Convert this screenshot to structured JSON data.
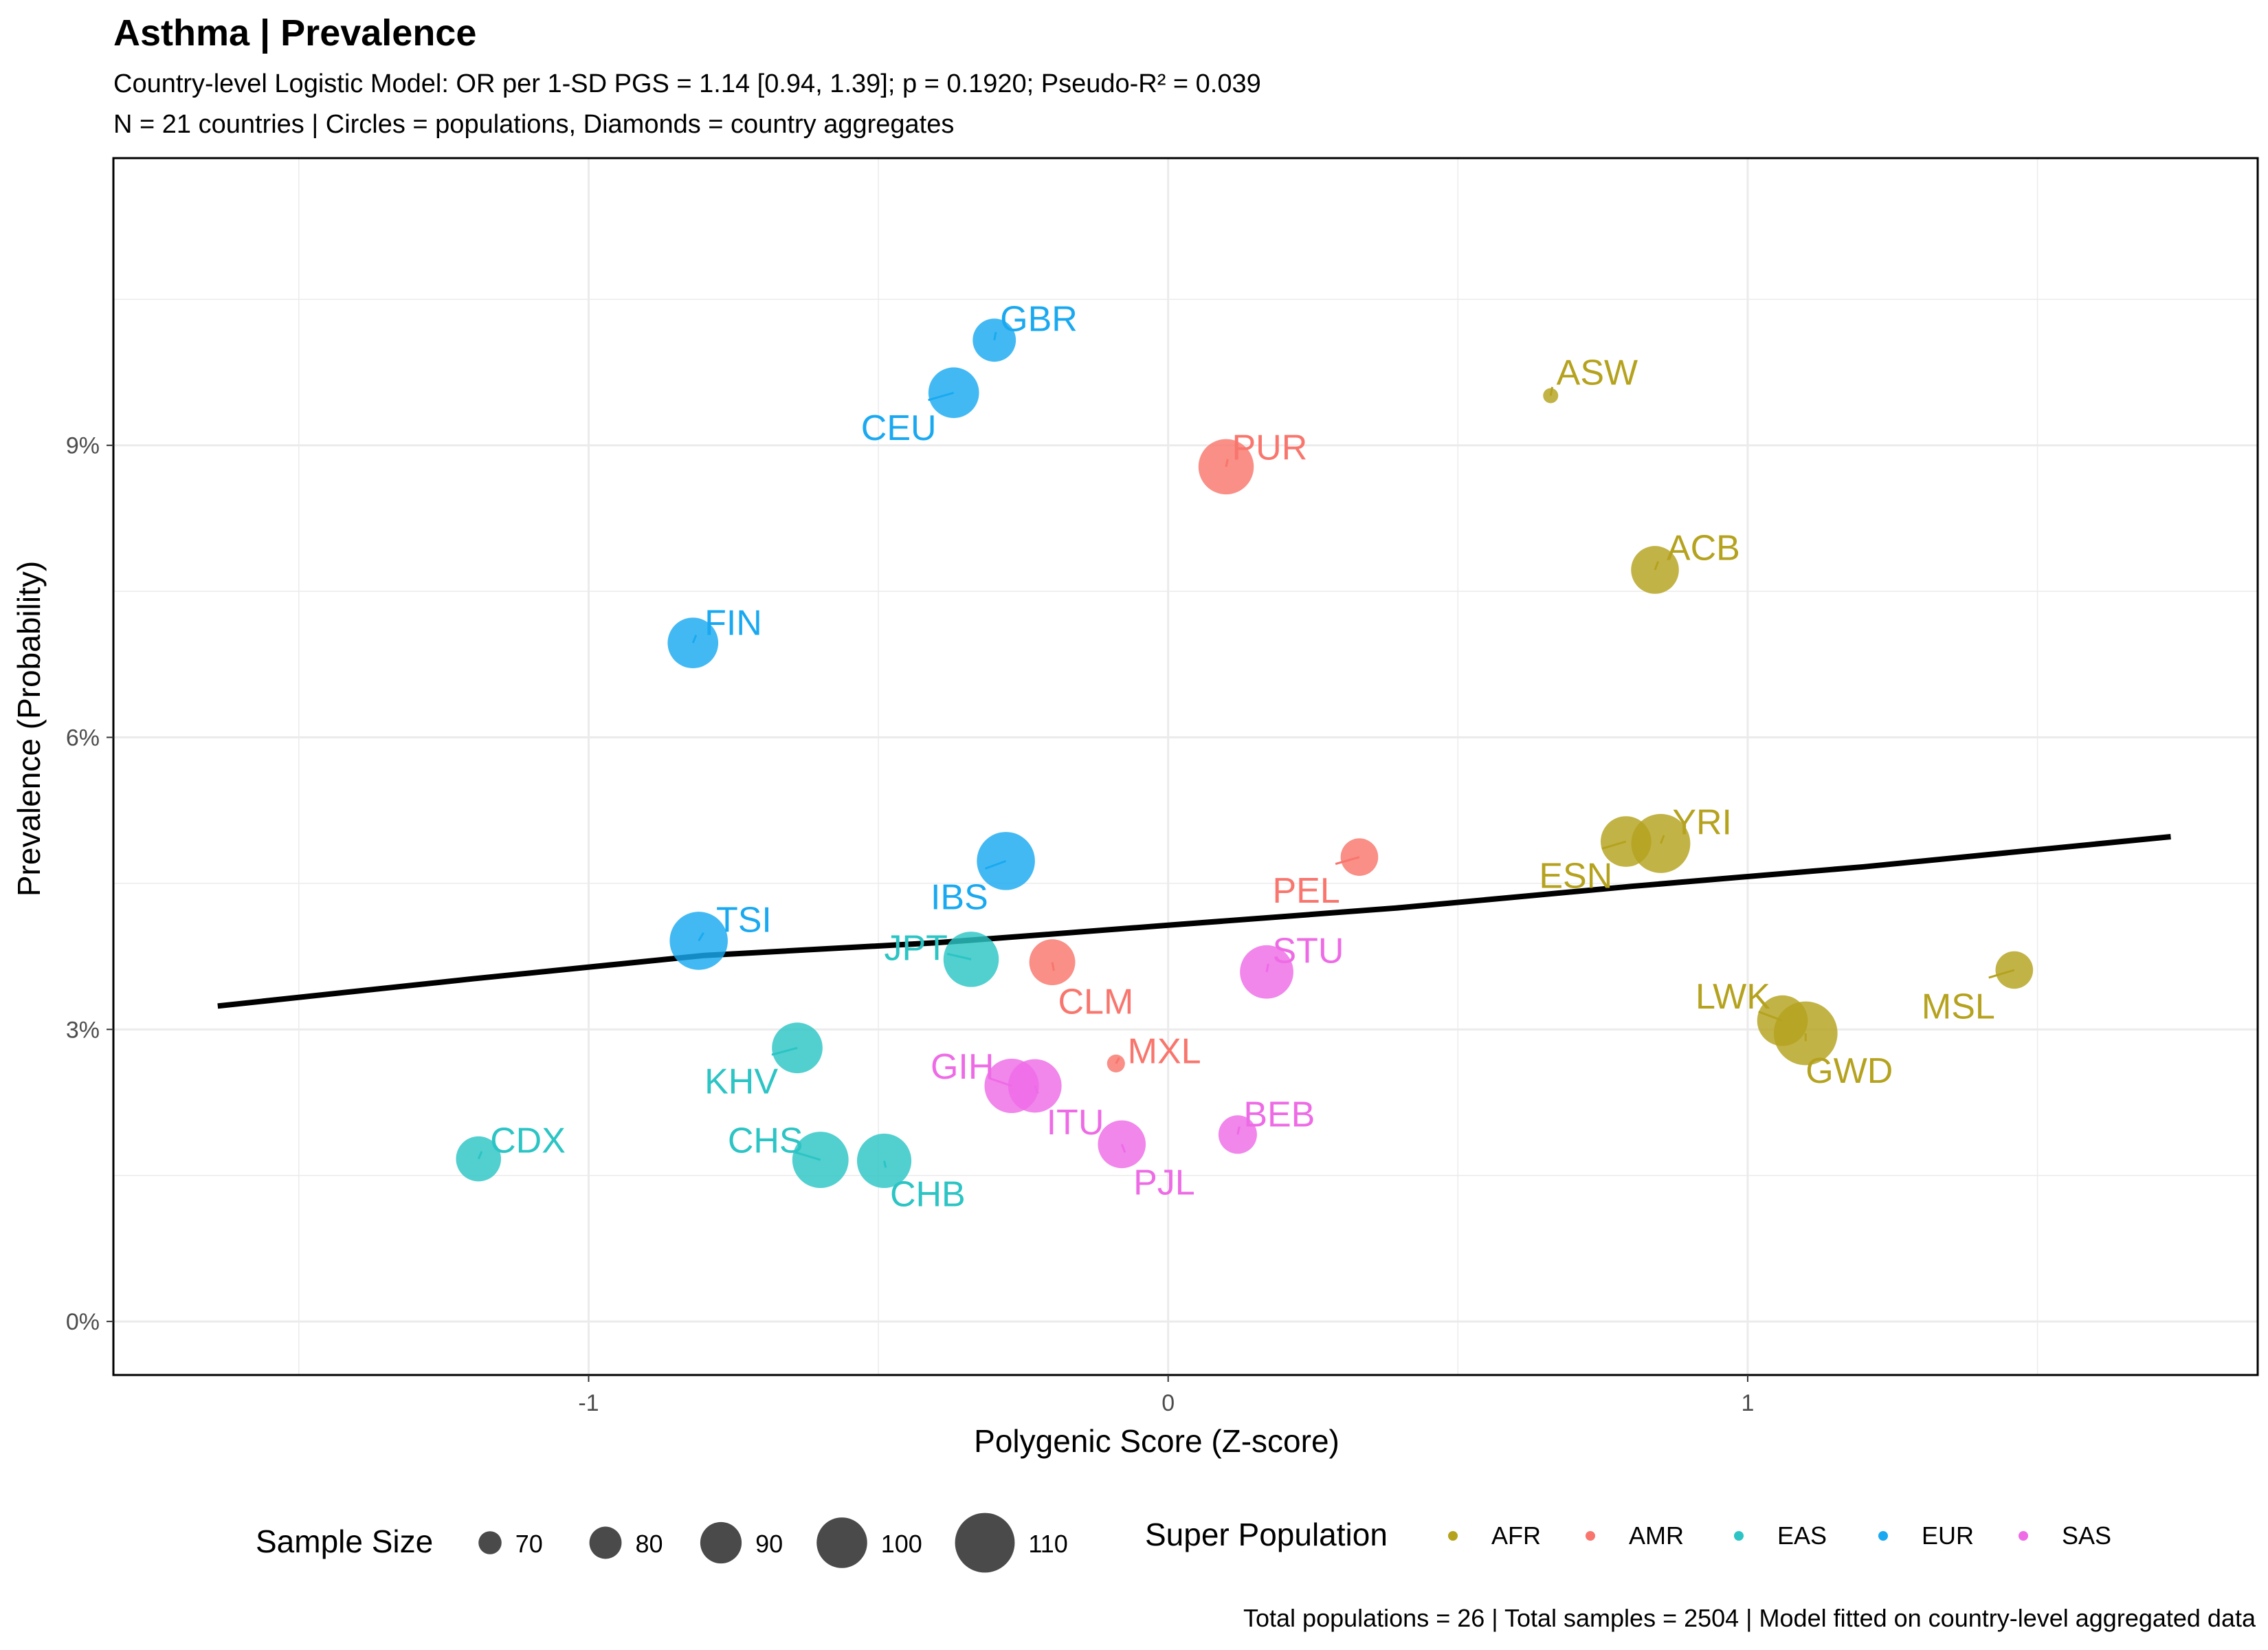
{
  "chart_data": {
    "type": "scatter",
    "title": "Asthma | Prevalence",
    "subtitle_lines": [
      "Country-level Logistic Model: OR per 1-SD PGS = 1.14 [0.94, 1.39]; p = 0.1920; Pseudo-R² = 0.039",
      "N = 21 countries | Circles = populations, Diamonds = country aggregates"
    ],
    "xlabel": "Polygenic Score (Z-score)",
    "ylabel": "Prevalence (Probability)",
    "xlim": [
      -1.82,
      1.88
    ],
    "ylim": [
      -0.0055,
      0.1195
    ],
    "x_ticks": [
      {
        "value": -1,
        "label": "-1"
      },
      {
        "value": 0,
        "label": "0"
      },
      {
        "value": 1,
        "label": "1"
      }
    ],
    "y_ticks": [
      {
        "value": 0,
        "label": "0%"
      },
      {
        "value": 0.03,
        "label": "3%"
      },
      {
        "value": 0.06,
        "label": "6%"
      },
      {
        "value": 0.09,
        "label": "9%"
      }
    ],
    "grid": true,
    "colors": {
      "AFR": "#B5A21E",
      "AMR": "#F8766D",
      "EAS": "#2CC4C4",
      "EUR": "#1AA9F0",
      "SAS": "#EE6BE6"
    },
    "points": [
      {
        "pop": "ACB",
        "super": "AFR",
        "x": 0.84,
        "y": 0.0772,
        "n": 96,
        "lx": 0.86,
        "ly": 0.0795
      },
      {
        "pop": "ASW",
        "super": "AFR",
        "x": 0.66,
        "y": 0.0951,
        "n": 61,
        "lx": 0.67,
        "ly": 0.0975
      },
      {
        "pop": "ESN",
        "super": "AFR",
        "x": 0.79,
        "y": 0.0493,
        "n": 99,
        "lx": 0.64,
        "ly": 0.0458
      },
      {
        "pop": "GWD",
        "super": "AFR",
        "x": 1.1,
        "y": 0.0296,
        "n": 113,
        "lx": 1.1,
        "ly": 0.0258
      },
      {
        "pop": "LWK",
        "super": "AFR",
        "x": 1.06,
        "y": 0.0309,
        "n": 99,
        "lx": 0.91,
        "ly": 0.0334
      },
      {
        "pop": "MSL",
        "super": "AFR",
        "x": 1.46,
        "y": 0.0361,
        "n": 85,
        "lx": 1.3,
        "ly": 0.0324
      },
      {
        "pop": "YRI",
        "super": "AFR",
        "x": 0.85,
        "y": 0.0491,
        "n": 108,
        "lx": 0.87,
        "ly": 0.0513
      },
      {
        "pop": "CLM",
        "super": "AMR",
        "x": -0.2,
        "y": 0.0369,
        "n": 94,
        "lx": -0.19,
        "ly": 0.0329
      },
      {
        "pop": "MXL",
        "super": "AMR",
        "x": -0.09,
        "y": 0.0265,
        "n": 64,
        "lx": -0.07,
        "ly": 0.0278
      },
      {
        "pop": "PEL",
        "super": "AMR",
        "x": 0.33,
        "y": 0.0477,
        "n": 85,
        "lx": 0.18,
        "ly": 0.0443
      },
      {
        "pop": "PUR",
        "super": "AMR",
        "x": 0.1,
        "y": 0.0878,
        "n": 104,
        "lx": 0.11,
        "ly": 0.0898
      },
      {
        "pop": "CDX",
        "super": "EAS",
        "x": -1.19,
        "y": 0.0167,
        "n": 93,
        "lx": -1.17,
        "ly": 0.0186
      },
      {
        "pop": "CHB",
        "super": "EAS",
        "x": -0.49,
        "y": 0.0165,
        "n": 103,
        "lx": -0.48,
        "ly": 0.0131
      },
      {
        "pop": "CHS",
        "super": "EAS",
        "x": -0.6,
        "y": 0.0166,
        "n": 105,
        "lx": -0.76,
        "ly": 0.0186
      },
      {
        "pop": "JPT",
        "super": "EAS",
        "x": -0.34,
        "y": 0.0372,
        "n": 104,
        "lx": -0.49,
        "ly": 0.0384
      },
      {
        "pop": "KHV",
        "super": "EAS",
        "x": -0.64,
        "y": 0.0281,
        "n": 99,
        "lx": -0.8,
        "ly": 0.0247
      },
      {
        "pop": "CEU",
        "super": "EUR",
        "x": -0.37,
        "y": 0.0954,
        "n": 99,
        "lx": -0.53,
        "ly": 0.0918
      },
      {
        "pop": "FIN",
        "super": "EUR",
        "x": -0.82,
        "y": 0.0697,
        "n": 99,
        "lx": -0.8,
        "ly": 0.0718
      },
      {
        "pop": "GBR",
        "super": "EUR",
        "x": -0.3,
        "y": 0.1008,
        "n": 91,
        "lx": -0.29,
        "ly": 0.103
      },
      {
        "pop": "IBS",
        "super": "EUR",
        "x": -0.28,
        "y": 0.0473,
        "n": 107,
        "lx": -0.41,
        "ly": 0.0436
      },
      {
        "pop": "TSI",
        "super": "EUR",
        "x": -0.81,
        "y": 0.0391,
        "n": 107,
        "lx": -0.78,
        "ly": 0.0413
      },
      {
        "pop": "BEB",
        "super": "SAS",
        "x": 0.12,
        "y": 0.0192,
        "n": 86,
        "lx": 0.13,
        "ly": 0.0213
      },
      {
        "pop": "GIH",
        "super": "SAS",
        "x": -0.27,
        "y": 0.0242,
        "n": 103,
        "lx": -0.41,
        "ly": 0.0262
      },
      {
        "pop": "ITU",
        "super": "SAS",
        "x": -0.23,
        "y": 0.0242,
        "n": 102,
        "lx": -0.21,
        "ly": 0.0205
      },
      {
        "pop": "PJL",
        "super": "SAS",
        "x": -0.08,
        "y": 0.0182,
        "n": 96,
        "lx": -0.06,
        "ly": 0.0143
      },
      {
        "pop": "STU",
        "super": "SAS",
        "x": 0.17,
        "y": 0.0359,
        "n": 102,
        "lx": 0.18,
        "ly": 0.0381
      }
    ],
    "fit_line": [
      {
        "x": -1.64,
        "y": 0.0324
      },
      {
        "x": -1.2,
        "y": 0.0352
      },
      {
        "x": -0.8,
        "y": 0.0376
      },
      {
        "x": -0.4,
        "y": 0.0389
      },
      {
        "x": 0.0,
        "y": 0.0407
      },
      {
        "x": 0.4,
        "y": 0.0425
      },
      {
        "x": 0.8,
        "y": 0.0447
      },
      {
        "x": 1.2,
        "y": 0.0467
      },
      {
        "x": 1.73,
        "y": 0.0498
      }
    ],
    "legend_size": {
      "title": "Sample Size",
      "items": [
        {
          "label": "70",
          "n": 70
        },
        {
          "label": "80",
          "n": 80
        },
        {
          "label": "90",
          "n": 90
        },
        {
          "label": "100",
          "n": 100
        },
        {
          "label": "110",
          "n": 110
        }
      ]
    },
    "legend_color": {
      "title": "Super Population",
      "items": [
        "AFR",
        "AMR",
        "EAS",
        "EUR",
        "SAS"
      ]
    },
    "caption": "Total populations = 26 | Total samples = 2504 | Model fitted on country-level aggregated data"
  }
}
